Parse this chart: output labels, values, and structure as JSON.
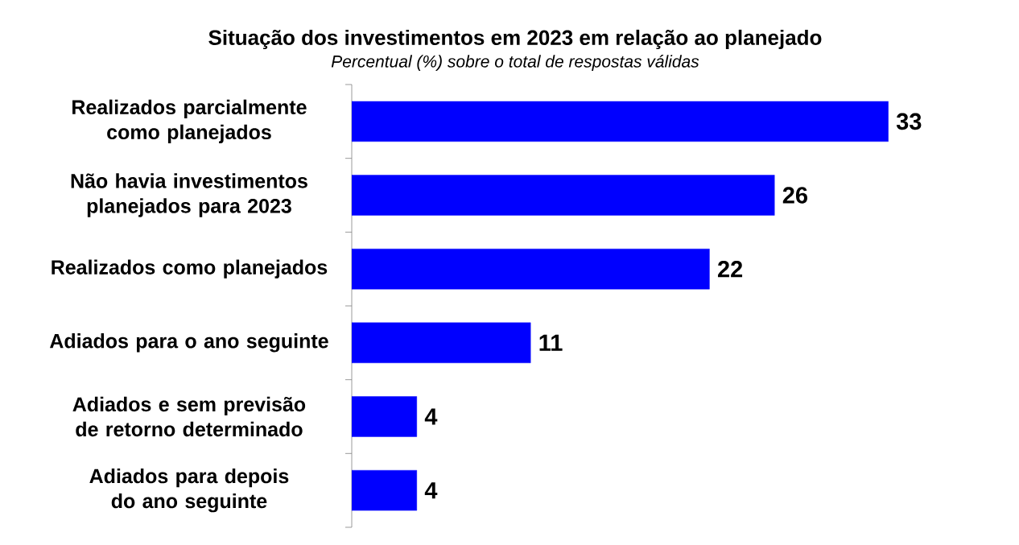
{
  "chart_data": {
    "type": "bar",
    "orientation": "horizontal",
    "title": "Situação dos investimentos em 2023 em relação ao planejado",
    "subtitle": "*Percentual (%) sobre o total de respostas válidas*",
    "categories": [
      "Realizados parcialmente como planejados",
      "Não havia investimentos planejados para 2023",
      "Realizados como planejados",
      "Adiados para o ano seguinte",
      "Adiados e sem previsão de retorno determinado",
      "Adiados para depois do ano seguinte"
    ],
    "values": [
      33,
      26,
      22,
      11,
      4,
      4
    ],
    "color": "#0000ff",
    "data_labels": true
  }
}
